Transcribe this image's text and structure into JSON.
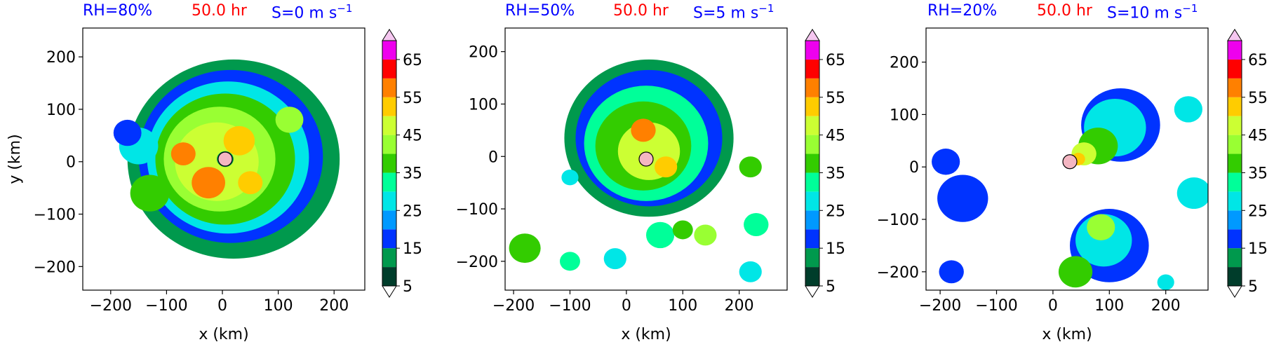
{
  "figure": {
    "panels": [
      {
        "rh": "RH=80%",
        "time": "50.0 hr",
        "shear": "S=0 m s",
        "shear_exp": "−1",
        "xlabel": "x (km)",
        "ylabel": "y (km)"
      },
      {
        "rh": "RH=50%",
        "time": "50.0 hr",
        "shear": "S=5 m s",
        "shear_exp": "−1",
        "xlabel": "x (km)",
        "ylabel": ""
      },
      {
        "rh": "RH=20%",
        "time": "50.0 hr",
        "shear": "S=10 m s",
        "shear_exp": "−1",
        "xlabel": "x (km)",
        "ylabel": ""
      }
    ],
    "colors": {
      "title_blue": "#0000ff",
      "title_red": "#ff0000",
      "marker_fill": "#f4b6c2"
    }
  },
  "chart_data": [
    {
      "type": "heatmap",
      "title": "RH=80%   50.0 hr   S=0 m s⁻¹",
      "xlabel": "x (km)",
      "ylabel": "y (km)",
      "xlim": [
        -250,
        255
      ],
      "ylim": [
        -245,
        255
      ],
      "xticks": [
        -200,
        -100,
        0,
        100,
        200
      ],
      "yticks": [
        -200,
        -100,
        0,
        100,
        200
      ],
      "center_marker": {
        "x": 5,
        "y": 5
      },
      "cells": [
        {
          "x": 20,
          "y": 5,
          "r": 190,
          "v": 8
        },
        {
          "x": 15,
          "y": 10,
          "r": 165,
          "v": 12
        },
        {
          "x": 10,
          "y": 8,
          "r": 145,
          "v": 22
        },
        {
          "x": 5,
          "y": 5,
          "r": 125,
          "v": 30
        },
        {
          "x": -5,
          "y": 5,
          "r": 100,
          "v": 36
        },
        {
          "x": -10,
          "y": 0,
          "r": 75,
          "v": 43
        },
        {
          "x": -25,
          "y": -40,
          "r": 30,
          "v": 52
        },
        {
          "x": 30,
          "y": 40,
          "r": 28,
          "v": 47
        },
        {
          "x": -70,
          "y": 15,
          "r": 22,
          "v": 50
        },
        {
          "x": 50,
          "y": -40,
          "r": 22,
          "v": 47
        },
        {
          "x": -150,
          "y": 30,
          "r": 35,
          "v": 22
        },
        {
          "x": -170,
          "y": 55,
          "r": 25,
          "v": 12
        },
        {
          "x": -130,
          "y": -60,
          "r": 35,
          "v": 30
        },
        {
          "x": 120,
          "y": 80,
          "r": 25,
          "v": 38
        },
        {
          "x": 5,
          "y": 5,
          "r": 15,
          "v": 8
        }
      ]
    },
    {
      "type": "heatmap",
      "title": "RH=50%   50.0 hr   S=5 m s⁻¹",
      "xlabel": "x (km)",
      "ylabel": "",
      "xlim": [
        -215,
        285
      ],
      "ylim": [
        -255,
        245
      ],
      "xticks": [
        -200,
        -100,
        0,
        100,
        200
      ],
      "yticks": [
        -200,
        -100,
        0,
        100,
        200
      ],
      "center_marker": {
        "x": 35,
        "y": -5
      },
      "cells": [
        {
          "x": 40,
          "y": 35,
          "r": 150,
          "v": 8
        },
        {
          "x": 40,
          "y": 35,
          "r": 130,
          "v": 14
        },
        {
          "x": 35,
          "y": 25,
          "r": 110,
          "v": 27
        },
        {
          "x": 30,
          "y": 20,
          "r": 85,
          "v": 33
        },
        {
          "x": 40,
          "y": 10,
          "r": 55,
          "v": 42
        },
        {
          "x": 30,
          "y": 50,
          "r": 22,
          "v": 52
        },
        {
          "x": 70,
          "y": -20,
          "r": 20,
          "v": 47
        },
        {
          "x": 35,
          "y": -5,
          "r": 12,
          "v": 8
        },
        {
          "x": 60,
          "y": -150,
          "r": 25,
          "v": 28
        },
        {
          "x": 100,
          "y": -140,
          "r": 18,
          "v": 33
        },
        {
          "x": -180,
          "y": -175,
          "r": 28,
          "v": 33
        },
        {
          "x": -100,
          "y": -200,
          "r": 18,
          "v": 27
        },
        {
          "x": -20,
          "y": -195,
          "r": 20,
          "v": 22
        },
        {
          "x": 140,
          "y": -150,
          "r": 20,
          "v": 38
        },
        {
          "x": 220,
          "y": -20,
          "r": 20,
          "v": 30
        },
        {
          "x": 230,
          "y": -130,
          "r": 22,
          "v": 27
        },
        {
          "x": 220,
          "y": -220,
          "r": 20,
          "v": 22
        },
        {
          "x": -100,
          "y": -40,
          "r": 15,
          "v": 22
        }
      ]
    },
    {
      "type": "heatmap",
      "title": "RH=20%   50.0 hr   S=10 m s⁻¹",
      "xlabel": "x (km)",
      "ylabel": "",
      "xlim": [
        -225,
        275
      ],
      "ylim": [
        -235,
        265
      ],
      "xticks": [
        -200,
        -100,
        0,
        100,
        200
      ],
      "yticks": [
        -200,
        -100,
        0,
        100,
        200
      ],
      "center_marker": {
        "x": 30,
        "y": 10
      },
      "cells": [
        {
          "x": 120,
          "y": 80,
          "r": 70,
          "v": 12
        },
        {
          "x": 110,
          "y": 75,
          "r": 55,
          "v": 22
        },
        {
          "x": 80,
          "y": 40,
          "r": 35,
          "v": 33
        },
        {
          "x": 55,
          "y": 25,
          "r": 22,
          "v": 42
        },
        {
          "x": 45,
          "y": 15,
          "r": 12,
          "v": 47
        },
        {
          "x": 100,
          "y": -150,
          "r": 70,
          "v": 12
        },
        {
          "x": 90,
          "y": -140,
          "r": 50,
          "v": 22
        },
        {
          "x": 85,
          "y": -115,
          "r": 25,
          "v": 38
        },
        {
          "x": 40,
          "y": -200,
          "r": 30,
          "v": 33
        },
        {
          "x": -160,
          "y": -60,
          "r": 45,
          "v": 12
        },
        {
          "x": -190,
          "y": 10,
          "r": 25,
          "v": 12
        },
        {
          "x": -180,
          "y": -200,
          "r": 22,
          "v": 14
        },
        {
          "x": 250,
          "y": -50,
          "r": 30,
          "v": 22
        },
        {
          "x": 240,
          "y": 110,
          "r": 25,
          "v": 22
        },
        {
          "x": 200,
          "y": -220,
          "r": 15,
          "v": 20
        }
      ]
    }
  ],
  "colorbar": {
    "levels": [
      5,
      10,
      15,
      20,
      25,
      30,
      35,
      40,
      45,
      50,
      55,
      60,
      65,
      70
    ],
    "tick_labels": [
      "5",
      "15",
      "25",
      "35",
      "45",
      "55",
      "65"
    ],
    "colors": [
      "#003d2b",
      "#00994d",
      "#0033ff",
      "#0099ff",
      "#00e6e6",
      "#00ff99",
      "#33cc00",
      "#99ff33",
      "#ccff33",
      "#ffcc00",
      "#ff8000",
      "#ff0000",
      "#ee00ee",
      "#cc66ff",
      "#f5c6f0"
    ]
  }
}
